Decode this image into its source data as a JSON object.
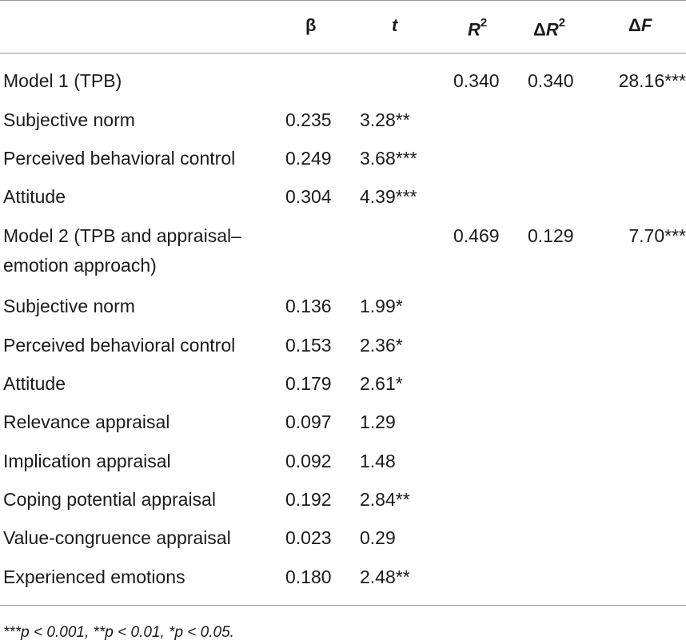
{
  "header": {
    "beta": "β",
    "t": "t",
    "r2_base": "R",
    "r2_sup": "2",
    "dr2_delta": "Δ",
    "dr2_base": "R",
    "dr2_sup": "2",
    "df_delta": "Δ",
    "df_base": "F"
  },
  "rows": [
    {
      "label": "Model 1 (TPB)",
      "beta": "",
      "t": "",
      "r2": "0.340",
      "dr2": "0.340",
      "df": "28.16***"
    },
    {
      "label": "Subjective norm",
      "beta": "0.235",
      "t": "3.28**",
      "r2": "",
      "dr2": "",
      "df": ""
    },
    {
      "label": "Perceived behavioral control",
      "beta": "0.249",
      "t": "3.68***",
      "r2": "",
      "dr2": "",
      "df": ""
    },
    {
      "label": "Attitude",
      "beta": "0.304",
      "t": "4.39***",
      "r2": "",
      "dr2": "",
      "df": ""
    },
    {
      "label": "Model 2 (TPB and appraisal–",
      "label2": "emotion approach)",
      "beta": "",
      "t": "",
      "r2": "0.469",
      "dr2": "0.129",
      "df": "7.70***"
    },
    {
      "label": "Subjective norm",
      "beta": "0.136",
      "t": "1.99*",
      "r2": "",
      "dr2": "",
      "df": ""
    },
    {
      "label": "Perceived behavioral control",
      "beta": "0.153",
      "t": "2.36*",
      "r2": "",
      "dr2": "",
      "df": ""
    },
    {
      "label": "Attitude",
      "beta": "0.179",
      "t": "2.61*",
      "r2": "",
      "dr2": "",
      "df": ""
    },
    {
      "label": "Relevance appraisal",
      "beta": "0.097",
      "t": "1.29",
      "r2": "",
      "dr2": "",
      "df": ""
    },
    {
      "label": "Implication appraisal",
      "beta": "0.092",
      "t": "1.48",
      "r2": "",
      "dr2": "",
      "df": ""
    },
    {
      "label": "Coping potential appraisal",
      "beta": "0.192",
      "t": "2.84**",
      "r2": "",
      "dr2": "",
      "df": ""
    },
    {
      "label": "Value-congruence appraisal",
      "beta": "0.023",
      "t": "0.29",
      "r2": "",
      "dr2": "",
      "df": ""
    },
    {
      "label": "Experienced emotions",
      "beta": "0.180",
      "t": "2.48**",
      "r2": "",
      "dr2": "",
      "df": ""
    }
  ],
  "footnote": "***p < 0.001, **p < 0.01, *p < 0.05."
}
